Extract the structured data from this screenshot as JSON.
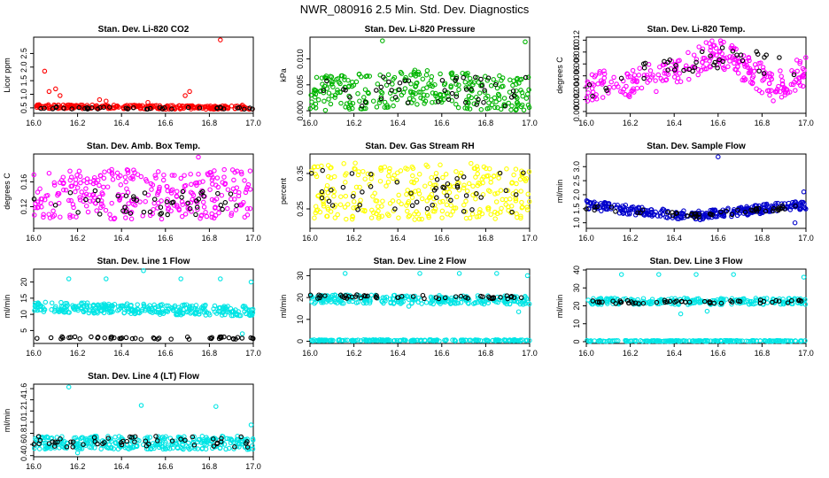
{
  "figure_title": "NWR_080916  2.5 Min. Std. Dev. Diagnostics",
  "colors": {
    "red": "#ff0000",
    "green": "#00b400",
    "magenta": "#ff00ff",
    "yellow": "#ffff00",
    "blue": "#0000cc",
    "cyan": "#00e5e5",
    "black": "#000000",
    "axis": "#000000"
  },
  "chart_data": [
    {
      "id": "co2",
      "type": "scatter",
      "title": "Stan. Dev. Li-820 CO2",
      "ylabel": "Licor ppm",
      "xlim": [
        16.0,
        17.0
      ],
      "ylim": [
        0.3,
        3.1
      ],
      "xticks": [
        "16.0",
        "16.2",
        "16.4",
        "16.6",
        "16.8",
        "17.0"
      ],
      "yticks": [
        "0.5",
        "1.0",
        "1.5",
        "2.0",
        "2.5"
      ],
      "series": [
        {
          "name": "main",
          "color": "#ff0000",
          "gen": {
            "n": 260,
            "base": [
              [
                0,
                0.55
              ],
              [
                1,
                0.5
              ]
            ],
            "noise": 0.07,
            "spread": "uniform"
          },
          "outliers": [
            [
              16.05,
              1.85
            ],
            [
              16.07,
              1.1
            ],
            [
              16.1,
              1.2
            ],
            [
              16.12,
              0.95
            ],
            [
              16.3,
              0.8
            ],
            [
              16.33,
              0.75
            ],
            [
              16.69,
              0.95
            ],
            [
              16.71,
              1.1
            ],
            [
              16.85,
              3.0
            ],
            [
              16.52,
              0.7
            ],
            [
              16.95,
              0.6
            ]
          ]
        },
        {
          "name": "avg",
          "color": "#000000",
          "gen": {
            "n": 40,
            "base": [
              [
                0,
                0.5
              ],
              [
                1,
                0.48
              ]
            ],
            "noise": 0.04,
            "spread": "uniform"
          }
        }
      ]
    },
    {
      "id": "pressure",
      "type": "scatter",
      "title": "Stan. Dev. Li-820 Pressure",
      "ylabel": "kPa",
      "xlim": [
        16.0,
        17.0
      ],
      "ylim": [
        -0.0005,
        0.0142
      ],
      "xticks": [
        "16.0",
        "16.2",
        "16.4",
        "16.6",
        "16.8",
        "17.0"
      ],
      "yticks": [
        "0.000",
        "0.005",
        "0.010"
      ],
      "series": [
        {
          "name": "main",
          "color": "#00b400",
          "gen": {
            "n": 300,
            "base": [
              [
                0,
                0.003
              ],
              [
                0.5,
                0.0045
              ],
              [
                1,
                0.003
              ]
            ],
            "noise": 0.0035,
            "spread": "uniform",
            "floor": 0.0
          },
          "outliers": [
            [
              16.33,
              0.0135
            ],
            [
              16.98,
              0.0133
            ]
          ]
        },
        {
          "name": "avg",
          "color": "#000000",
          "gen": {
            "n": 45,
            "base": [
              [
                0,
                0.0035
              ],
              [
                1,
                0.0035
              ]
            ],
            "noise": 0.003,
            "spread": "uniform",
            "floor": 0.0
          }
        }
      ]
    },
    {
      "id": "temp",
      "type": "scatter",
      "title": "Stan. Dev. Li-820 Temp.",
      "ylabel": "degrees C",
      "xlim": [
        16.0,
        17.0
      ],
      "ylim": [
        -0.0003,
        0.0125
      ],
      "xticks": [
        "16.0",
        "16.2",
        "16.4",
        "16.6",
        "16.8",
        "17.0"
      ],
      "yticks": [
        "0.000",
        "0.002",
        "0.004",
        "0.006",
        "0.008",
        "0.010",
        "0.012"
      ],
      "series": [
        {
          "name": "main",
          "color": "#ff00ff",
          "gen": {
            "n": 280,
            "base": [
              [
                0,
                0.004
              ],
              [
                0.2,
                0.005
              ],
              [
                0.35,
                0.006
              ],
              [
                0.6,
                0.01
              ],
              [
                0.75,
                0.007
              ],
              [
                0.85,
                0.004
              ],
              [
                1,
                0.007
              ]
            ],
            "noise": 0.0025,
            "spread": "uniform",
            "floor": 0.0
          }
        },
        {
          "name": "avg",
          "color": "#000000",
          "gen": {
            "n": 40,
            "base": [
              [
                0,
                0.004
              ],
              [
                0.6,
                0.009
              ],
              [
                1,
                0.007
              ]
            ],
            "noise": 0.002,
            "spread": "uniform",
            "floor": 0.0
          }
        }
      ]
    },
    {
      "id": "ambbox",
      "type": "scatter",
      "title": "Stan. Dev. Amb. Box Temp.",
      "ylabel": "degrees C",
      "xlim": [
        16.0,
        17.0
      ],
      "ylim": [
        0.085,
        0.205
      ],
      "xticks": [
        "16.0",
        "16.2",
        "16.4",
        "16.6",
        "16.8",
        "17.0"
      ],
      "yticks": [
        "0.12",
        "0.16"
      ],
      "series": [
        {
          "name": "main",
          "color": "#ff00ff",
          "gen": {
            "n": 300,
            "base": [
              [
                0,
                0.14
              ],
              [
                1,
                0.14
              ]
            ],
            "noise": 0.04,
            "spread": "uniform"
          },
          "outliers": [
            [
              16.75,
              0.2
            ]
          ]
        },
        {
          "name": "avg",
          "color": "#000000",
          "gen": {
            "n": 45,
            "base": [
              [
                0,
                0.127
              ],
              [
                1,
                0.127
              ]
            ],
            "noise": 0.02,
            "spread": "uniform"
          }
        }
      ]
    },
    {
      "id": "rh",
      "type": "scatter",
      "title": "Stan. Dev. Gas Stream RH",
      "ylabel": "percent",
      "xlim": [
        16.0,
        17.0
      ],
      "ylim": [
        0.195,
        0.405
      ],
      "xticks": [
        "16.0",
        "16.2",
        "16.4",
        "16.6",
        "16.8",
        "17.0"
      ],
      "yticks": [
        "0.25",
        "0.35"
      ],
      "series": [
        {
          "name": "main",
          "color": "#ffff00",
          "gen": {
            "n": 300,
            "base": [
              [
                0,
                0.3
              ],
              [
                1,
                0.3
              ]
            ],
            "noise": 0.08,
            "spread": "uniform"
          }
        },
        {
          "name": "avg",
          "color": "#000000",
          "gen": {
            "n": 45,
            "base": [
              [
                0,
                0.3
              ],
              [
                1,
                0.3
              ]
            ],
            "noise": 0.06,
            "spread": "uniform"
          }
        }
      ]
    },
    {
      "id": "sample",
      "type": "scatter",
      "title": "Stan. Dev. Sample Flow",
      "ylabel": "ml/min",
      "xlim": [
        16.0,
        17.0
      ],
      "ylim": [
        0.8,
        3.45
      ],
      "xticks": [
        "16.0",
        "16.2",
        "16.4",
        "16.6",
        "16.8",
        "17.0"
      ],
      "yticks": [
        "1.0",
        "1.5",
        "2.0",
        "2.5",
        "3.0"
      ],
      "series": [
        {
          "name": "main",
          "color": "#0000cc",
          "gen": {
            "n": 320,
            "base": [
              [
                0,
                1.65
              ],
              [
                0.25,
                1.4
              ],
              [
                0.5,
                1.25
              ],
              [
                0.75,
                1.45
              ],
              [
                1,
                1.65
              ]
            ],
            "noise": 0.16,
            "spread": "uniform"
          },
          "outliers": [
            [
              16.6,
              3.35
            ],
            [
              16.99,
              2.1
            ],
            [
              16.95,
              1.0
            ]
          ]
        },
        {
          "name": "avg",
          "color": "#000000",
          "gen": {
            "n": 50,
            "base": [
              [
                0,
                1.55
              ],
              [
                0.5,
                1.25
              ],
              [
                1,
                1.6
              ]
            ],
            "noise": 0.08,
            "spread": "uniform"
          }
        }
      ]
    },
    {
      "id": "line1",
      "type": "scatter",
      "title": "Stan. Dev. Line 1 Flow",
      "ylabel": "ml/min",
      "xlim": [
        16.0,
        17.0
      ],
      "ylim": [
        1.0,
        24.0
      ],
      "xticks": [
        "16.0",
        "16.2",
        "16.4",
        "16.6",
        "16.8",
        "17.0"
      ],
      "yticks": [
        "5",
        "10",
        "15",
        "20"
      ],
      "series": [
        {
          "name": "main",
          "color": "#00e5e5",
          "gen": {
            "n": 320,
            "base": [
              [
                0,
                12.3
              ],
              [
                1,
                11.0
              ]
            ],
            "noise": 1.6,
            "spread": "uniform"
          },
          "outliers": [
            [
              16.16,
              21.0
            ],
            [
              16.33,
              21.0
            ],
            [
              16.5,
              23.5
            ],
            [
              16.67,
              21.0
            ],
            [
              16.85,
              21.0
            ],
            [
              16.99,
              20.0
            ],
            [
              16.95,
              4.0
            ]
          ]
        },
        {
          "name": "avg",
          "color": "#000000",
          "gen": {
            "n": 50,
            "base": [
              [
                0,
                2.7
              ],
              [
                1,
                2.7
              ]
            ],
            "noise": 0.4,
            "spread": "uniform"
          }
        }
      ]
    },
    {
      "id": "line2",
      "type": "scatter",
      "title": "Stan. Dev. Line 2 Flow",
      "ylabel": "ml/min",
      "xlim": [
        16.0,
        17.0
      ],
      "ylim": [
        -1.0,
        33.0
      ],
      "xticks": [
        "16.0",
        "16.2",
        "16.4",
        "16.6",
        "16.8",
        "17.0"
      ],
      "yticks": [
        "0",
        "10",
        "20",
        "30"
      ],
      "series": [
        {
          "name": "main",
          "color": "#00e5e5",
          "gen": {
            "n": 260,
            "base": [
              [
                0,
                19.3
              ],
              [
                1,
                18.8
              ]
            ],
            "noise": 2.0,
            "spread": "uniform"
          },
          "outliers": [
            [
              16.16,
              31.0
            ],
            [
              16.5,
              31.0
            ],
            [
              16.68,
              31.0
            ],
            [
              16.85,
              31.0
            ],
            [
              16.99,
              30.0
            ],
            [
              16.95,
              13.5
            ],
            [
              16.45,
              16.0
            ]
          ]
        },
        {
          "name": "zero",
          "color": "#00e5e5",
          "gen": {
            "n": 200,
            "base": [
              [
                0,
                0.4
              ],
              [
                1,
                0.4
              ]
            ],
            "noise": 0.3,
            "spread": "uniform"
          }
        },
        {
          "name": "avg",
          "color": "#000000",
          "gen": {
            "n": 50,
            "base": [
              [
                0,
                20.5
              ],
              [
                1,
                20.0
              ]
            ],
            "noise": 0.9,
            "spread": "uniform"
          }
        }
      ]
    },
    {
      "id": "line3",
      "type": "scatter",
      "title": "Stan. Dev. Line 3 Flow",
      "ylabel": "ml/min",
      "xlim": [
        16.0,
        17.0
      ],
      "ylim": [
        -1.0,
        40.5
      ],
      "xticks": [
        "16.0",
        "16.2",
        "16.4",
        "16.6",
        "16.8",
        "17.0"
      ],
      "yticks": [
        "0",
        "10",
        "20",
        "30",
        "40"
      ],
      "series": [
        {
          "name": "main",
          "color": "#00e5e5",
          "gen": {
            "n": 240,
            "base": [
              [
                0,
                22.5
              ],
              [
                1,
                22.5
              ]
            ],
            "noise": 1.8,
            "spread": "uniform"
          },
          "outliers": [
            [
              16.16,
              37.5
            ],
            [
              16.33,
              37.5
            ],
            [
              16.5,
              37.5
            ],
            [
              16.67,
              37.5
            ],
            [
              16.99,
              36.0
            ],
            [
              16.43,
              15.5
            ],
            [
              16.55,
              17.0
            ]
          ]
        },
        {
          "name": "zero",
          "color": "#00e5e5",
          "gen": {
            "n": 200,
            "base": [
              [
                0,
                0.4
              ],
              [
                1,
                0.4
              ]
            ],
            "noise": 0.3,
            "spread": "uniform"
          }
        },
        {
          "name": "avg",
          "color": "#000000",
          "gen": {
            "n": 50,
            "base": [
              [
                0,
                22.0
              ],
              [
                1,
                22.5
              ]
            ],
            "noise": 0.9,
            "spread": "uniform"
          }
        }
      ]
    },
    {
      "id": "line4",
      "type": "scatter",
      "title": "Stan. Dev. Line 4 (LT) Flow",
      "ylabel": "ml/min",
      "xlim": [
        16.0,
        17.0
      ],
      "ylim": [
        0.38,
        1.68
      ],
      "xticks": [
        "16.0",
        "16.2",
        "16.4",
        "16.6",
        "16.8",
        "17.0"
      ],
      "yticks": [
        "0.4",
        "0.6",
        "0.8",
        "1.0",
        "1.2",
        "1.4",
        "1.6"
      ],
      "series": [
        {
          "name": "main",
          "color": "#00e5e5",
          "gen": {
            "n": 320,
            "base": [
              [
                0,
                0.63
              ],
              [
                1,
                0.63
              ]
            ],
            "noise": 0.12,
            "spread": "uniform"
          },
          "outliers": [
            [
              16.16,
              1.63
            ],
            [
              16.49,
              1.3
            ],
            [
              16.83,
              1.28
            ],
            [
              16.99,
              0.95
            ],
            [
              16.2,
              0.45
            ]
          ]
        },
        {
          "name": "avg",
          "color": "#000000",
          "gen": {
            "n": 50,
            "base": [
              [
                0,
                0.65
              ],
              [
                1,
                0.65
              ]
            ],
            "noise": 0.1,
            "spread": "uniform"
          }
        }
      ]
    }
  ]
}
